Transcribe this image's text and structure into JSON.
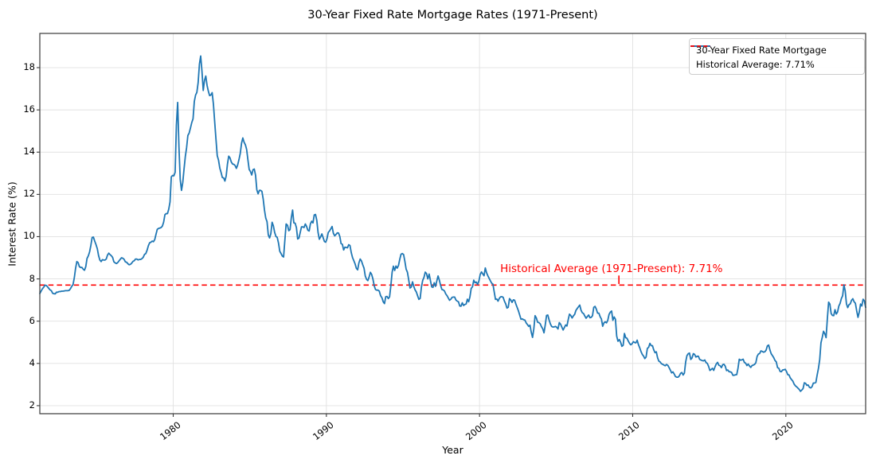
{
  "chart_data": {
    "type": "line",
    "title": "30-Year Fixed Rate Mortgage Rates (1971-Present)",
    "xlabel": "Year",
    "ylabel": "Interest Rate (%)",
    "xlim": [
      1971.29,
      2025.21
    ],
    "ylim": [
      1.62,
      19.62
    ],
    "xticks": [
      1980,
      1990,
      2000,
      2010,
      2020
    ],
    "yticks": [
      2,
      4,
      6,
      8,
      10,
      12,
      14,
      16,
      18
    ],
    "grid": true,
    "grid_color": "#e1e1e1",
    "spine_color": "#3a3a3a",
    "legend_position": "upper right",
    "series": [
      {
        "name": "30-Year Fixed Rate Mortgage",
        "color": "#1f77b4",
        "style": "solid",
        "frequency": "monthly",
        "start_year": 1971,
        "start_month": 4,
        "values": [
          7.31,
          7.42,
          7.53,
          7.6,
          7.7,
          7.69,
          7.63,
          7.55,
          7.48,
          7.44,
          7.32,
          7.3,
          7.29,
          7.37,
          7.37,
          7.4,
          7.4,
          7.42,
          7.42,
          7.43,
          7.44,
          7.44,
          7.44,
          7.46,
          7.54,
          7.65,
          7.73,
          8.05,
          8.5,
          8.82,
          8.77,
          8.58,
          8.54,
          8.54,
          8.46,
          8.41,
          8.58,
          8.97,
          9.09,
          9.28,
          9.59,
          9.96,
          9.98,
          9.79,
          9.62,
          9.43,
          9.1,
          8.89,
          8.82,
          8.91,
          8.89,
          8.89,
          8.94,
          9.13,
          9.22,
          9.15,
          9.1,
          9.02,
          8.81,
          8.76,
          8.73,
          8.77,
          8.85,
          8.93,
          9.0,
          8.98,
          8.93,
          8.81,
          8.79,
          8.72,
          8.67,
          8.69,
          8.75,
          8.83,
          8.86,
          8.94,
          8.94,
          8.9,
          8.92,
          8.92,
          8.96,
          9.02,
          9.16,
          9.2,
          9.36,
          9.57,
          9.71,
          9.74,
          9.79,
          9.76,
          9.86,
          10.11,
          10.35,
          10.39,
          10.41,
          10.43,
          10.5,
          10.69,
          11.04,
          11.09,
          11.09,
          11.3,
          11.64,
          12.83,
          12.9,
          12.88,
          13.04,
          15.28,
          16.35,
          14.26,
          12.71,
          12.19,
          12.56,
          13.2,
          13.79,
          14.21,
          14.79,
          14.9,
          15.13,
          15.4,
          15.58,
          16.4,
          16.7,
          16.83,
          17.29,
          18.16,
          18.55,
          17.83,
          16.92,
          17.4,
          17.6,
          17.16,
          16.89,
          16.68,
          16.7,
          16.82,
          16.27,
          15.43,
          14.61,
          13.83,
          13.62,
          13.25,
          13.04,
          12.8,
          12.78,
          12.63,
          12.87,
          13.43,
          13.81,
          13.73,
          13.54,
          13.44,
          13.42,
          13.37,
          13.23,
          13.39,
          13.65,
          13.94,
          14.42,
          14.67,
          14.47,
          14.35,
          14.13,
          13.64,
          13.18,
          13.08,
          12.92,
          13.17,
          13.2,
          12.91,
          12.22,
          12.03,
          12.19,
          12.19,
          12.14,
          11.78,
          11.26,
          10.88,
          10.71,
          10.08,
          9.94,
          10.14,
          10.68,
          10.51,
          10.2,
          10.01,
          9.97,
          9.7,
          9.31,
          9.2,
          9.08,
          9.04,
          9.83,
          10.6,
          10.54,
          10.28,
          10.33,
          10.89,
          11.26,
          10.65,
          10.64,
          10.43,
          9.89,
          9.93,
          10.2,
          10.46,
          10.46,
          10.43,
          10.6,
          10.48,
          10.3,
          10.27,
          10.61,
          10.73,
          10.65,
          11.03,
          11.05,
          10.77,
          10.2,
          9.88,
          9.99,
          10.13,
          9.95,
          9.77,
          9.74,
          9.9,
          10.2,
          10.27,
          10.37,
          10.48,
          10.16,
          10.04,
          10.1,
          10.18,
          10.17,
          10.01,
          9.67,
          9.64,
          9.37,
          9.5,
          9.49,
          9.47,
          9.62,
          9.58,
          9.24,
          9.01,
          8.86,
          8.71,
          8.5,
          8.43,
          8.76,
          8.94,
          8.85,
          8.67,
          8.51,
          8.13,
          7.98,
          7.92,
          8.09,
          8.31,
          8.21,
          7.99,
          7.68,
          7.5,
          7.47,
          7.47,
          7.42,
          7.21,
          7.11,
          6.92,
          6.83,
          7.16,
          7.17,
          7.07,
          7.15,
          7.68,
          8.32,
          8.6,
          8.4,
          8.61,
          8.51,
          8.64,
          8.93,
          9.17,
          9.2,
          9.15,
          8.83,
          8.46,
          8.32,
          7.96,
          7.57,
          7.61,
          7.86,
          7.64,
          7.48,
          7.38,
          7.2,
          7.03,
          7.08,
          7.62,
          7.93,
          8.07,
          8.32,
          8.25,
          8.0,
          8.23,
          7.92,
          7.62,
          7.6,
          7.82,
          7.65,
          7.9,
          8.14,
          7.94,
          7.69,
          7.5,
          7.48,
          7.43,
          7.29,
          7.21,
          7.1,
          6.99,
          7.04,
          7.13,
          7.14,
          7.14,
          7.0,
          6.95,
          6.92,
          6.72,
          6.71,
          6.87,
          6.74,
          6.79,
          6.81,
          7.04,
          6.92,
          7.15,
          7.55,
          7.63,
          7.94,
          7.82,
          7.85,
          7.74,
          7.91,
          8.21,
          8.33,
          8.24,
          8.15,
          8.52,
          8.29,
          8.15,
          8.03,
          7.91,
          7.8,
          7.75,
          7.38,
          7.03,
          7.05,
          6.95,
          7.08,
          7.15,
          7.16,
          7.13,
          6.95,
          6.82,
          6.62,
          6.66,
          7.07,
          7.0,
          6.89,
          7.01,
          6.99,
          6.81,
          6.65,
          6.49,
          6.29,
          6.09,
          6.11,
          6.07,
          6.05,
          5.92,
          5.84,
          5.75,
          5.81,
          5.48,
          5.23,
          5.63,
          6.26,
          6.15,
          5.95,
          5.93,
          5.88,
          5.74,
          5.64,
          5.45,
          5.83,
          6.27,
          6.29,
          6.06,
          5.87,
          5.75,
          5.72,
          5.73,
          5.75,
          5.71,
          5.63,
          5.93,
          5.86,
          5.72,
          5.58,
          5.7,
          5.82,
          5.77,
          6.07,
          6.33,
          6.27,
          6.15,
          6.25,
          6.32,
          6.51,
          6.6,
          6.68,
          6.76,
          6.52,
          6.4,
          6.36,
          6.24,
          6.14,
          6.22,
          6.29,
          6.16,
          6.18,
          6.26,
          6.66,
          6.7,
          6.57,
          6.38,
          6.38,
          6.21,
          6.1,
          5.76,
          5.92,
          5.97,
          5.92,
          6.04,
          6.32,
          6.43,
          6.48,
          6.04,
          6.2,
          6.09,
          5.29,
          5.05,
          5.13,
          5.0,
          4.81,
          4.86,
          5.42,
          5.22,
          5.19,
          5.06,
          4.95,
          4.88,
          4.93,
          5.03,
          4.99,
          4.97,
          5.1,
          4.89,
          4.74,
          4.56,
          4.43,
          4.35,
          4.23,
          4.3,
          4.71,
          4.76,
          4.95,
          4.84,
          4.84,
          4.64,
          4.51,
          4.55,
          4.27,
          4.11,
          4.07,
          3.99,
          3.96,
          3.92,
          3.89,
          3.95,
          3.91,
          3.8,
          3.68,
          3.55,
          3.6,
          3.5,
          3.38,
          3.35,
          3.35,
          3.41,
          3.53,
          3.57,
          3.45,
          3.54,
          4.07,
          4.37,
          4.46,
          4.49,
          4.19,
          4.26,
          4.46,
          4.43,
          4.3,
          4.34,
          4.34,
          4.19,
          4.16,
          4.13,
          4.12,
          4.16,
          4.04,
          4.0,
          3.86,
          3.67,
          3.71,
          3.77,
          3.67,
          3.84,
          3.98,
          4.05,
          3.91,
          3.89,
          3.8,
          3.94,
          3.96,
          3.87,
          3.66,
          3.69,
          3.61,
          3.6,
          3.57,
          3.44,
          3.44,
          3.46,
          3.47,
          3.77,
          4.2,
          4.15,
          4.17,
          4.2,
          4.05,
          4.01,
          3.9,
          3.97,
          3.88,
          3.81,
          3.9,
          3.92,
          3.95,
          4.03,
          4.33,
          4.44,
          4.47,
          4.59,
          4.57,
          4.53,
          4.55,
          4.63,
          4.83,
          4.87,
          4.64,
          4.46,
          4.37,
          4.27,
          4.14,
          4.07,
          3.8,
          3.77,
          3.62,
          3.61,
          3.69,
          3.7,
          3.72,
          3.62,
          3.47,
          3.45,
          3.31,
          3.23,
          3.16,
          3.02,
          2.94,
          2.89,
          2.83,
          2.77,
          2.68,
          2.74,
          2.81,
          3.08,
          3.06,
          2.96,
          2.98,
          2.87,
          2.84,
          2.9,
          3.07,
          3.07,
          3.1,
          3.45,
          3.76,
          4.17,
          4.98,
          5.23,
          5.52,
          5.41,
          5.22,
          6.11,
          6.9,
          6.81,
          6.36,
          6.27,
          6.26,
          6.54,
          6.34,
          6.43,
          6.71,
          6.84,
          7.07,
          7.2,
          7.72,
          7.44,
          6.82,
          6.64,
          6.78,
          6.82,
          6.99,
          7.06,
          6.92,
          6.85,
          6.5,
          6.18,
          6.43,
          6.81,
          6.72,
          7.04,
          6.96,
          6.65
        ]
      },
      {
        "name": "Historical Average: 7.71%",
        "color": "#ff0000",
        "style": "dashed",
        "constant_value": 7.71
      }
    ],
    "annotation": {
      "text": "Historical Average (1971-Present): 7.71%",
      "color": "#ff0000",
      "x_year": 2001.35,
      "y_rate": 8.28,
      "pointer_x_year": 2009.1,
      "pointer_y_from_rate": 8.16,
      "pointer_y_to_rate": 7.76
    }
  }
}
